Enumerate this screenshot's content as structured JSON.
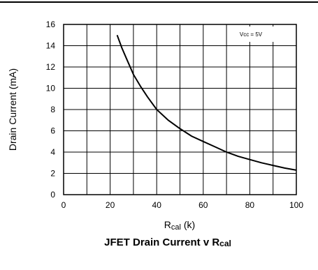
{
  "chart_data": {
    "type": "line",
    "title": "JFET Drain Current v Rcal",
    "title_main": "JFET Drain Current v R",
    "title_sub": "cal",
    "xlabel_main": "R",
    "xlabel_sub": "cal",
    "xlabel_unit": " (k)",
    "ylabel": "Drain Current (mA)",
    "annotation": "Vcc = 5V",
    "xlim": [
      0,
      100
    ],
    "ylim": [
      0,
      16
    ],
    "xticks": [
      "0",
      "20",
      "40",
      "60",
      "80",
      "100"
    ],
    "yticks": [
      "0",
      "2",
      "4",
      "6",
      "8",
      "10",
      "12",
      "14",
      "16"
    ],
    "grid": true,
    "series": [
      {
        "x": [
          23,
          25,
          27,
          30,
          33,
          36,
          40,
          45,
          50,
          55,
          60,
          65,
          70,
          75,
          80,
          85,
          90,
          95,
          100
        ],
        "y": [
          15,
          13.8,
          12.8,
          11.3,
          10.2,
          9.2,
          8.0,
          7.0,
          6.2,
          5.5,
          5.0,
          4.5,
          4.0,
          3.6,
          3.3,
          3.0,
          2.75,
          2.5,
          2.3
        ]
      }
    ]
  }
}
